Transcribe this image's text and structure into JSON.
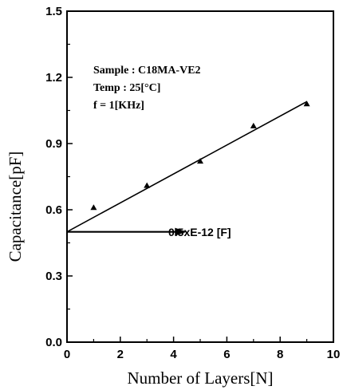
{
  "chart_data": {
    "type": "scatter",
    "xlabel": "Number of Layers[N]",
    "ylabel": "Capacitance[pF]",
    "xlim": [
      0,
      10
    ],
    "ylim": [
      0,
      1.5
    ],
    "x_ticks": [
      "0",
      "2",
      "4",
      "6",
      "8",
      "10"
    ],
    "y_ticks": [
      "0.0",
      "0.3",
      "0.6",
      "0.9",
      "1.2",
      "1.5"
    ],
    "grid": false,
    "series": [
      {
        "marker": "triangle",
        "points": [
          {
            "x": 1,
            "y": 0.61
          },
          {
            "x": 3,
            "y": 0.71
          },
          {
            "x": 5,
            "y": 0.82
          },
          {
            "x": 7,
            "y": 0.98
          },
          {
            "x": 9,
            "y": 1.08
          }
        ]
      }
    ],
    "fit_line": {
      "x": [
        0,
        9
      ],
      "y": [
        0.5,
        1.09
      ]
    },
    "annotations": {
      "sample": "Sample : C18MA-VE2",
      "temp": "Temp : 25[°C]",
      "freq": "f  = 1[KHz]",
      "intercept": "0.5xE-12  [F]"
    },
    "intercept_arrow": {
      "y": 0.5,
      "x_end": 4.5
    }
  }
}
